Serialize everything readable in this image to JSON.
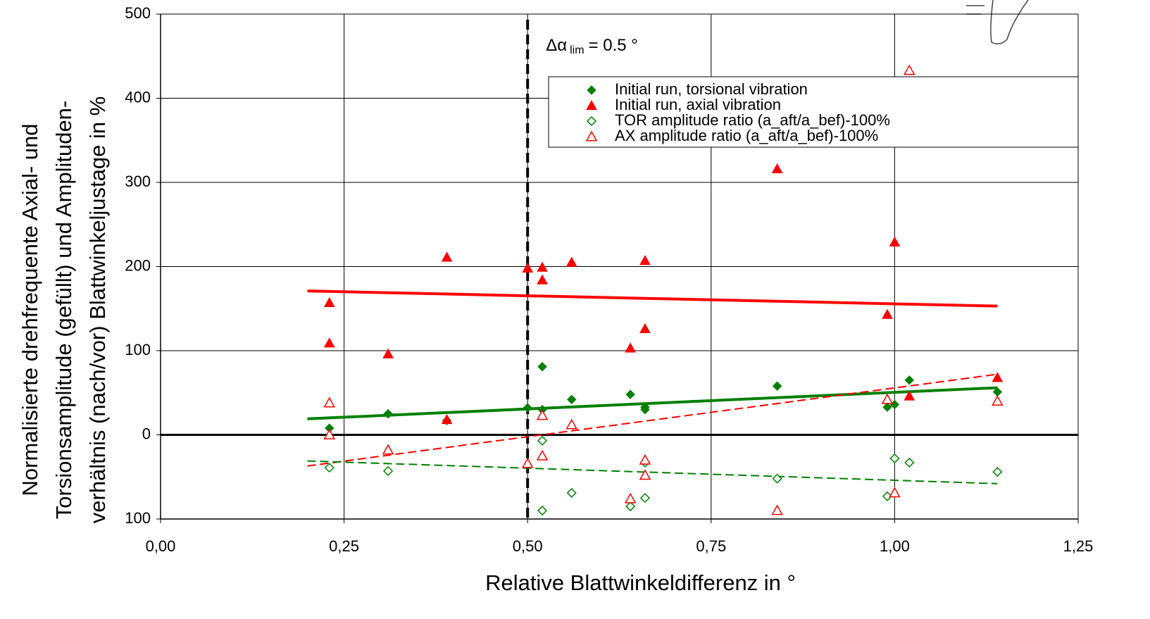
{
  "chart_data": {
    "type": "scatter",
    "xlabel": "Relative Blattwinkeldifferenz in °",
    "ylabel": [
      "Normalisierte drehfrequente Axial- und",
      "Torsionsamplitude (gefüllt) und Amplituden-",
      "verhältnis (nach/vor) Blattwinkeljustage in %"
    ],
    "xlim": [
      0,
      1.25
    ],
    "xticks": [
      {
        "value": 0,
        "label": "0,00"
      },
      {
        "value": 0.25,
        "label": "0,25"
      },
      {
        "value": 0.5,
        "label": "0,50"
      },
      {
        "value": 0.75,
        "label": "0,75"
      },
      {
        "value": 1,
        "label": "1,00"
      },
      {
        "value": 1.25,
        "label": "1,25"
      }
    ],
    "ylim": [
      -100,
      500
    ],
    "yticks": [
      {
        "value": -100,
        "label": "100"
      },
      0,
      100,
      200,
      300,
      400,
      500
    ],
    "grid": true,
    "zero_line": 0,
    "legend": "upper right",
    "vline": {
      "x": 0.5,
      "symbol": "Δα",
      "subscript": "lim",
      "text": "= 0.5 °"
    },
    "series": [
      {
        "name": "Initial run, torsional vibration",
        "color": "#008000",
        "marker": "diamond",
        "filled": true,
        "x": [
          0.23,
          0.31,
          0.39,
          0.5,
          0.52,
          0.52,
          0.56,
          0.64,
          0.66,
          0.66,
          0.84,
          0.99,
          1.0,
          1.02,
          1.14
        ],
        "values": [
          8,
          25,
          17,
          32,
          81,
          30,
          42,
          48,
          33,
          30,
          58,
          33,
          36,
          65,
          51
        ]
      },
      {
        "name": "Initial run, axial vibration",
        "color": "#ff0000",
        "marker": "triangle",
        "filled": true,
        "x": [
          0.23,
          0.23,
          0.31,
          0.39,
          0.39,
          0.5,
          0.52,
          0.52,
          0.56,
          0.64,
          0.66,
          0.66,
          0.84,
          0.99,
          1.0,
          1.02,
          1.14
        ],
        "values": [
          157,
          109,
          96,
          211,
          18,
          198,
          199,
          184,
          205,
          103,
          207,
          126,
          316,
          143,
          229,
          46,
          68
        ]
      },
      {
        "name": "TOR amplitude ratio (a_aft/a_bef)-100%",
        "color": "#008000",
        "marker": "diamond",
        "filled": false,
        "x": [
          0.23,
          0.31,
          0.52,
          0.52,
          0.56,
          0.64,
          0.66,
          0.66,
          0.84,
          0.99,
          1.0,
          1.02,
          1.14
        ],
        "values": [
          -39,
          -43,
          -7,
          -90,
          -69,
          -85,
          -33,
          -75,
          -52,
          -73,
          -28,
          -33,
          -44
        ]
      },
      {
        "name": "AX amplitude ratio (a_aft/a_bef)-100%",
        "color": "#ff0000",
        "marker": "triangle",
        "filled": false,
        "x": [
          0.23,
          0.23,
          0.31,
          0.5,
          0.52,
          0.52,
          0.56,
          0.64,
          0.66,
          0.66,
          0.84,
          0.99,
          1.0,
          1.02,
          1.14
        ],
        "values": [
          38,
          0,
          -18,
          -34,
          23,
          -25,
          12,
          -76,
          -30,
          -48,
          -90,
          42,
          -69,
          433,
          40
        ]
      }
    ],
    "trendlines": [
      {
        "color": "#ff0000",
        "dashed": false,
        "x": [
          0.2,
          1.14
        ],
        "values": [
          171,
          153
        ]
      },
      {
        "color": "#008000",
        "dashed": false,
        "x": [
          0.2,
          1.14
        ],
        "values": [
          19,
          56
        ]
      },
      {
        "color": "#ff0000",
        "dashed": true,
        "x": [
          0.2,
          1.14
        ],
        "values": [
          -37,
          72
        ]
      },
      {
        "color": "#008000",
        "dashed": true,
        "x": [
          0.2,
          1.14
        ],
        "values": [
          -31,
          -58
        ]
      }
    ]
  }
}
